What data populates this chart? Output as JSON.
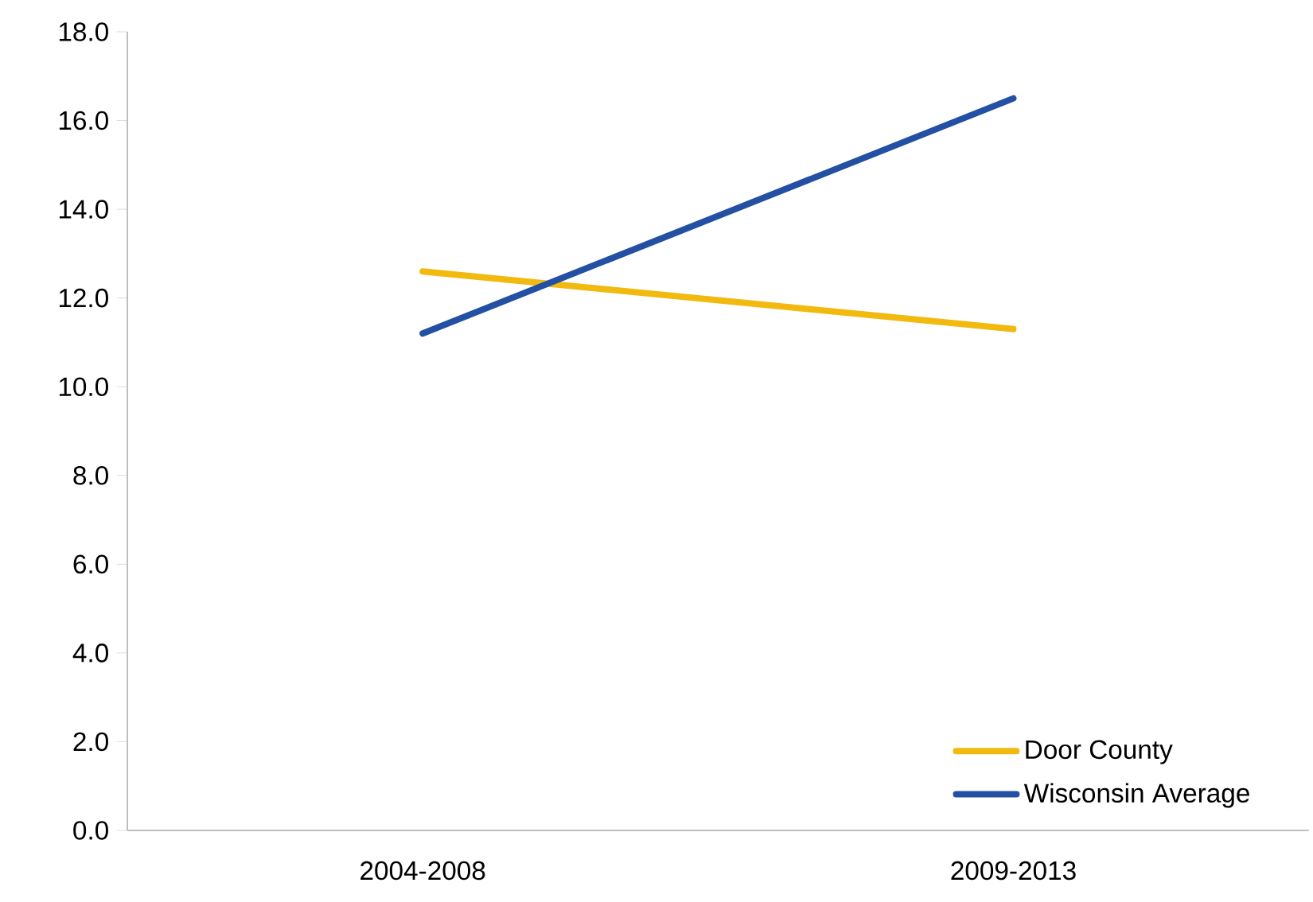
{
  "chart_data": {
    "type": "line",
    "categories": [
      "2004-2008",
      "2009-2013"
    ],
    "series": [
      {
        "name": "Door County",
        "color": "#f2b90f",
        "values": [
          12.6,
          11.3
        ]
      },
      {
        "name": "Wisconsin Average",
        "color": "#2450a4",
        "values": [
          11.2,
          16.5
        ]
      }
    ],
    "ylim": [
      0,
      18
    ],
    "yticks": [
      {
        "value": 0,
        "label": "0.0"
      },
      {
        "value": 2,
        "label": "2.0"
      },
      {
        "value": 4,
        "label": "4.0"
      },
      {
        "value": 6,
        "label": "6.0"
      },
      {
        "value": 8,
        "label": "8.0"
      },
      {
        "value": 10,
        "label": "10.0"
      },
      {
        "value": 12,
        "label": "12.0"
      },
      {
        "value": 14,
        "label": "14.0"
      },
      {
        "value": 16,
        "label": "16.0"
      },
      {
        "value": 18,
        "label": "18.0"
      }
    ],
    "grid": false,
    "legend": "bottom right",
    "line_style": "solid"
  }
}
